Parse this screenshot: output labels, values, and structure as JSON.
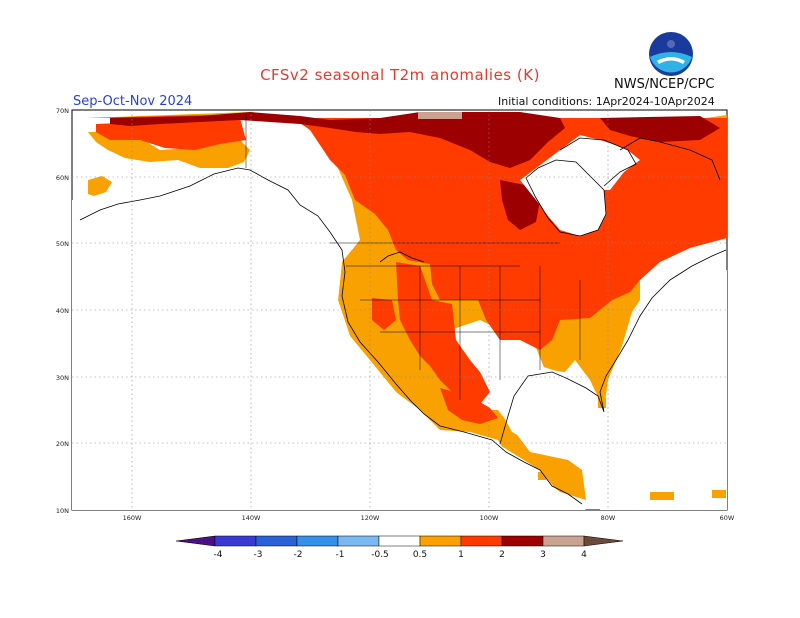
{
  "header": {
    "title": "CFSv2 seasonal T2m anomalies (K)",
    "agency": "NWS/NCEP/CPC",
    "period": "Sep-Oct-Nov 2024",
    "initial_conditions": "Initial conditions: 1Apr2024-10Apr2024"
  },
  "map": {
    "region": "North America",
    "lat_labels": [
      "70N",
      "60N",
      "50N",
      "40N",
      "30N",
      "20N",
      "10N"
    ],
    "lon_labels": [
      "160W",
      "140W",
      "120W",
      "100W",
      "80W",
      "60W"
    ]
  },
  "legend": {
    "tick_labels": [
      "-4",
      "-3",
      "-2",
      "-1",
      "-0.5",
      "0.5",
      "1",
      "2",
      "3",
      "4"
    ],
    "colors": {
      "lt_m4": "#4b0f87",
      "m4_m3": "#3b3ad0",
      "m3_m2": "#2a62d6",
      "m2_m1": "#3590e6",
      "m1_m05": "#7ab8f0",
      "p05_p1": "#f9a100",
      "p1_p2": "#ff3b00",
      "p2_p3": "#9c0000",
      "p3_p4": "#c9a294",
      "gt_p4": "#6b4a3a"
    }
  }
}
